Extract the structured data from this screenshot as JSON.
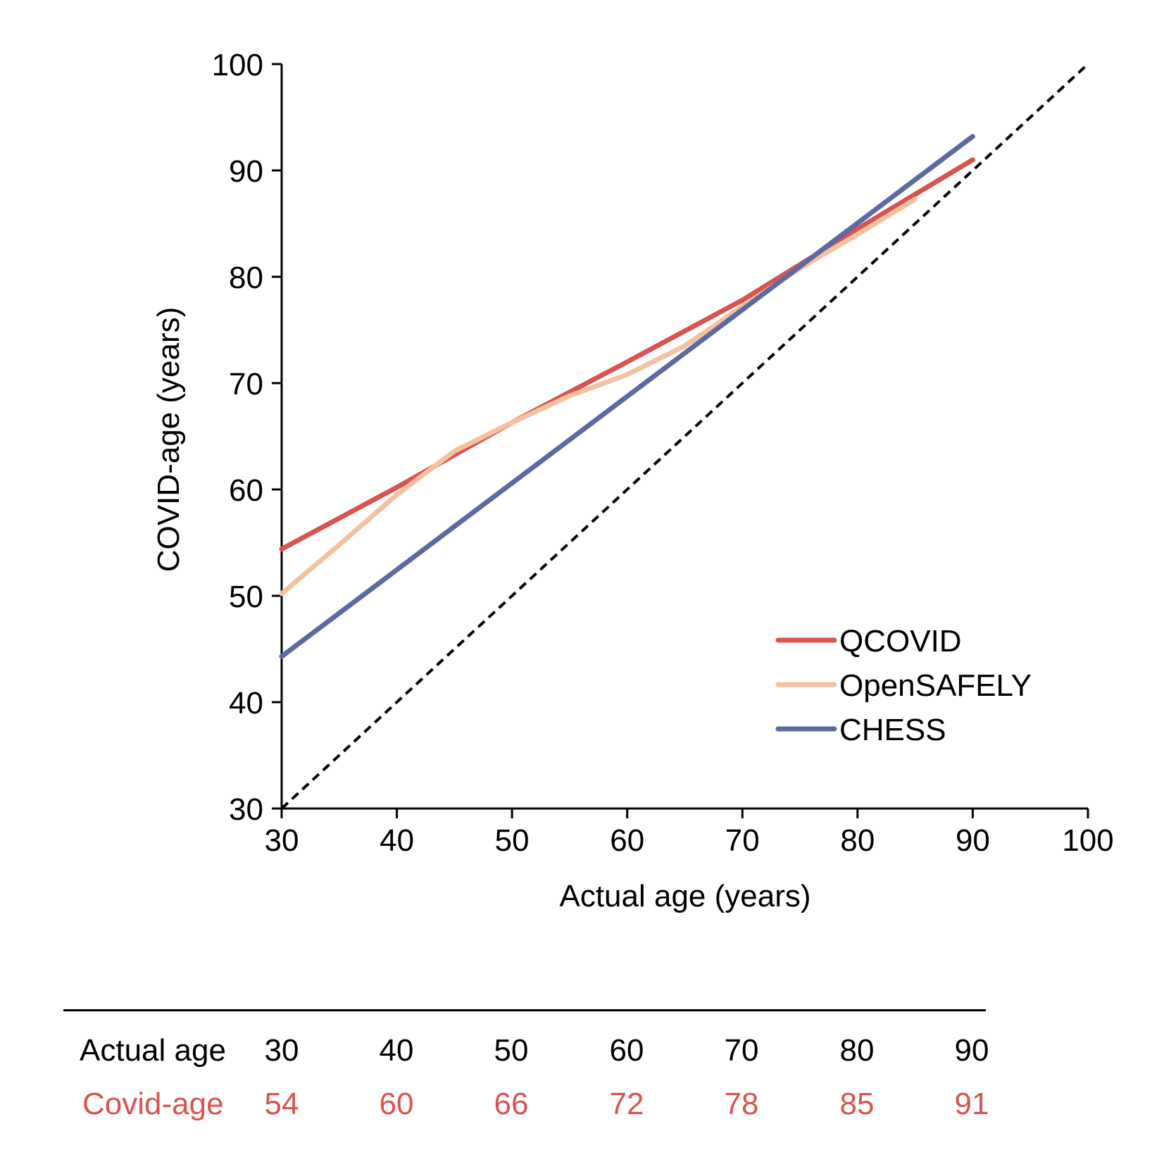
{
  "colors": {
    "qcovid": "#d9534f",
    "opensafely": "#f4c29f",
    "chess": "#5b6aa0",
    "diagonal": "#000000",
    "table_covid_text": "#d9534f"
  },
  "chart_data": {
    "type": "line",
    "title": "",
    "xlabel": "Actual age (years)",
    "ylabel": "COVID-age (years)",
    "xlim": [
      30,
      100
    ],
    "ylim": [
      30,
      100
    ],
    "xticks": [
      30,
      40,
      50,
      60,
      70,
      80,
      90,
      100
    ],
    "yticks": [
      30,
      40,
      50,
      60,
      70,
      80,
      90,
      100
    ],
    "grid": false,
    "legend_position": "bottom-right",
    "series": [
      {
        "name": "QCOVID",
        "color_key": "qcovid",
        "x": [
          30,
          40,
          50,
          60,
          70,
          80,
          90
        ],
        "y": [
          54.4,
          60.2,
          66.3,
          72.0,
          77.8,
          84.5,
          91.0
        ]
      },
      {
        "name": "OpenSAFELY",
        "color_key": "opensafely",
        "x": [
          30,
          35,
          40,
          45,
          50,
          55,
          60,
          65,
          70,
          75,
          80,
          85
        ],
        "y": [
          50.2,
          54.8,
          59.5,
          63.6,
          66.3,
          68.8,
          70.8,
          73.5,
          77.2,
          80.8,
          84.0,
          87.3
        ]
      },
      {
        "name": "CHESS",
        "color_key": "chess",
        "x": [
          30,
          90
        ],
        "y": [
          44.3,
          93.2
        ]
      },
      {
        "name": "",
        "color_key": "diagonal",
        "dashed": true,
        "x": [
          30,
          100
        ],
        "y": [
          30,
          100
        ]
      }
    ]
  },
  "table": {
    "row1_label": "Actual age",
    "row2_label": "Covid-age",
    "actual": [
      "30",
      "40",
      "50",
      "60",
      "70",
      "80",
      "90"
    ],
    "covid": [
      "54",
      "60",
      "66",
      "72",
      "78",
      "85",
      "91"
    ]
  }
}
